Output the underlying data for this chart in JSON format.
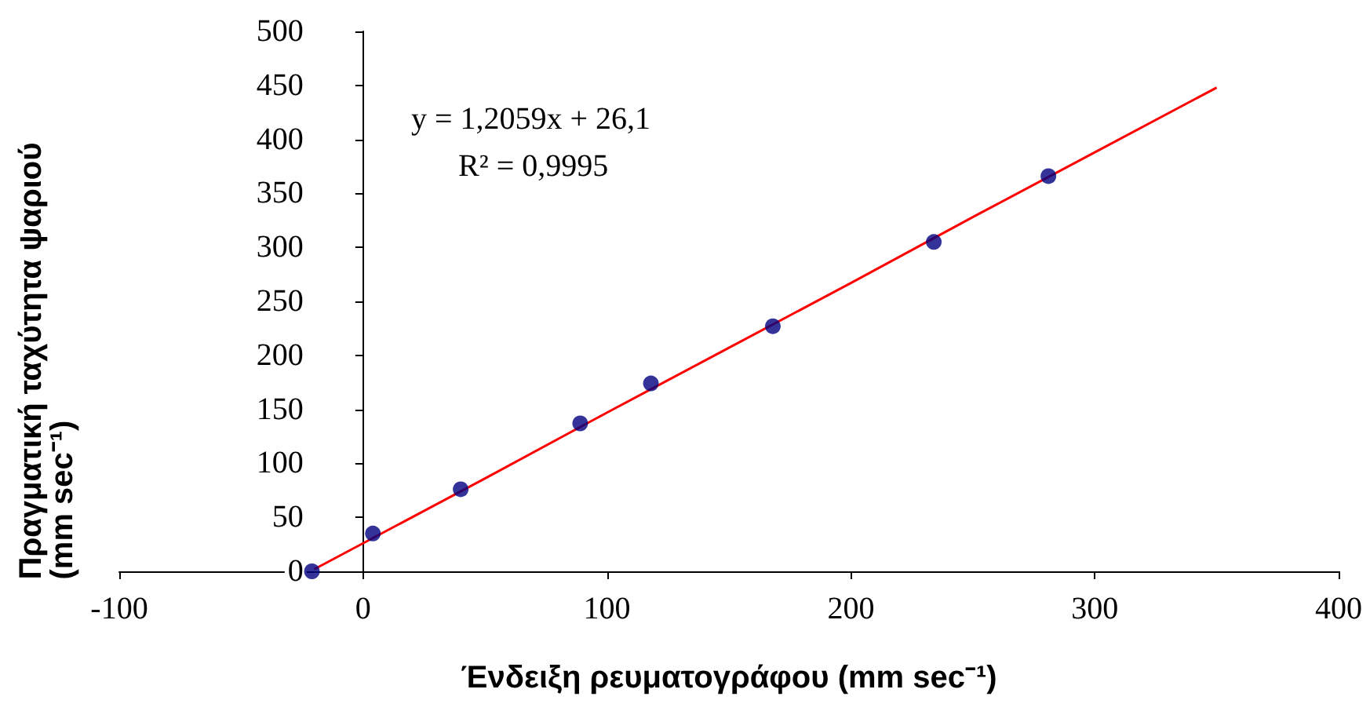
{
  "chart_data": {
    "type": "scatter",
    "xlabel": "Ένδειξη ρευματογράφου (mm sec⁻¹)",
    "ylabel": "Πραγματική ταχύτητα ψαριού\n(mm sec⁻¹)",
    "series": [
      {
        "color": "#000080",
        "marker": "circle",
        "x": [
          -21,
          4,
          40,
          89,
          118,
          168,
          234,
          281
        ],
        "values": [
          0,
          35,
          76,
          137,
          174,
          227,
          305,
          366
        ]
      },
      {
        "type": "line",
        "color": "#ff0000",
        "marker": "none",
        "line_style": "solid",
        "x": [
          -20,
          50,
          100,
          150,
          200,
          250,
          300,
          350
        ],
        "values": [
          2,
          86,
          147,
          207,
          267,
          328,
          388,
          448
        ]
      }
    ],
    "xlim": [
      -100,
      400
    ],
    "xticks": [
      -100,
      0,
      100,
      200,
      300,
      400
    ],
    "ylim": [
      0,
      500
    ],
    "yticks": [
      0,
      50,
      100,
      150,
      200,
      250,
      300,
      350,
      400,
      450,
      500
    ],
    "annotations": [
      "y = 1,2059x + 26,1",
      "R² = 0,9995"
    ]
  }
}
